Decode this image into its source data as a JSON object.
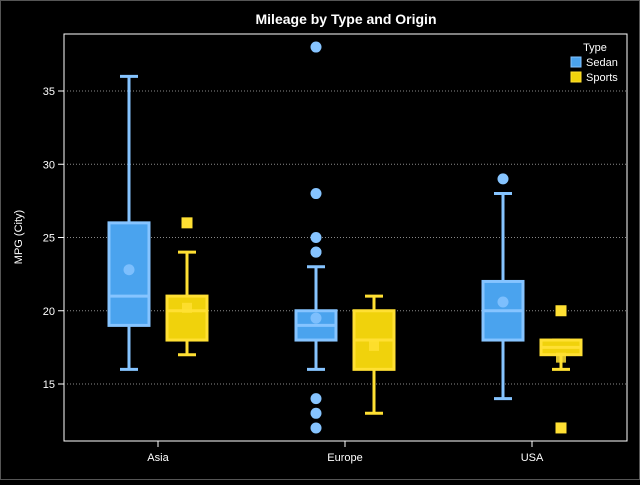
{
  "chart_data": {
    "type": "box",
    "title": "Mileage by Type and Origin",
    "xlabel": "",
    "ylabel": "MPG (City)",
    "categories": [
      "Asia",
      "Europe",
      "USA"
    ],
    "ylim": [
      11,
      39
    ],
    "yticks": [
      15,
      20,
      25,
      30,
      35
    ],
    "grid": "horizontal dotted",
    "legend": {
      "title": "Type",
      "placement": "top-right"
    },
    "colors": {
      "background": "#000000",
      "axis": "#ffffff",
      "grid": "#8a8a8a",
      "Sedan": "#4aa3ee",
      "Sedan_line": "#86c4ff",
      "Sports": "#f0d20c",
      "Sports_line": "#ffe033"
    },
    "series": [
      {
        "name": "Sedan",
        "boxes": [
          {
            "category": "Asia",
            "min": 16,
            "q1": 19,
            "median": 21,
            "q3": 26,
            "max": 36,
            "mean": 22.8,
            "outliers": []
          },
          {
            "category": "Europe",
            "min": 16,
            "q1": 18,
            "median": 19,
            "q3": 20,
            "max": 23,
            "mean": 19.5,
            "outliers": [
              12,
              13,
              14,
              24,
              24,
              25,
              28,
              38
            ]
          },
          {
            "category": "USA",
            "min": 14,
            "q1": 18,
            "median": 20,
            "q3": 22,
            "max": 28,
            "mean": 20.6,
            "outliers": [
              29
            ]
          }
        ]
      },
      {
        "name": "Sports",
        "boxes": [
          {
            "category": "Asia",
            "min": 17,
            "q1": 18,
            "median": 20,
            "q3": 21,
            "max": 24,
            "mean": 20.2,
            "outliers": [
              26
            ]
          },
          {
            "category": "Europe",
            "min": 13,
            "q1": 16,
            "median": 18,
            "q3": 20,
            "max": 21,
            "mean": 17.6,
            "outliers": []
          },
          {
            "category": "USA",
            "min": 16,
            "q1": 17,
            "median": 17.5,
            "q3": 18,
            "max": 18,
            "mean": 16.8,
            "outliers": [
              12,
              20
            ]
          }
        ]
      }
    ]
  }
}
